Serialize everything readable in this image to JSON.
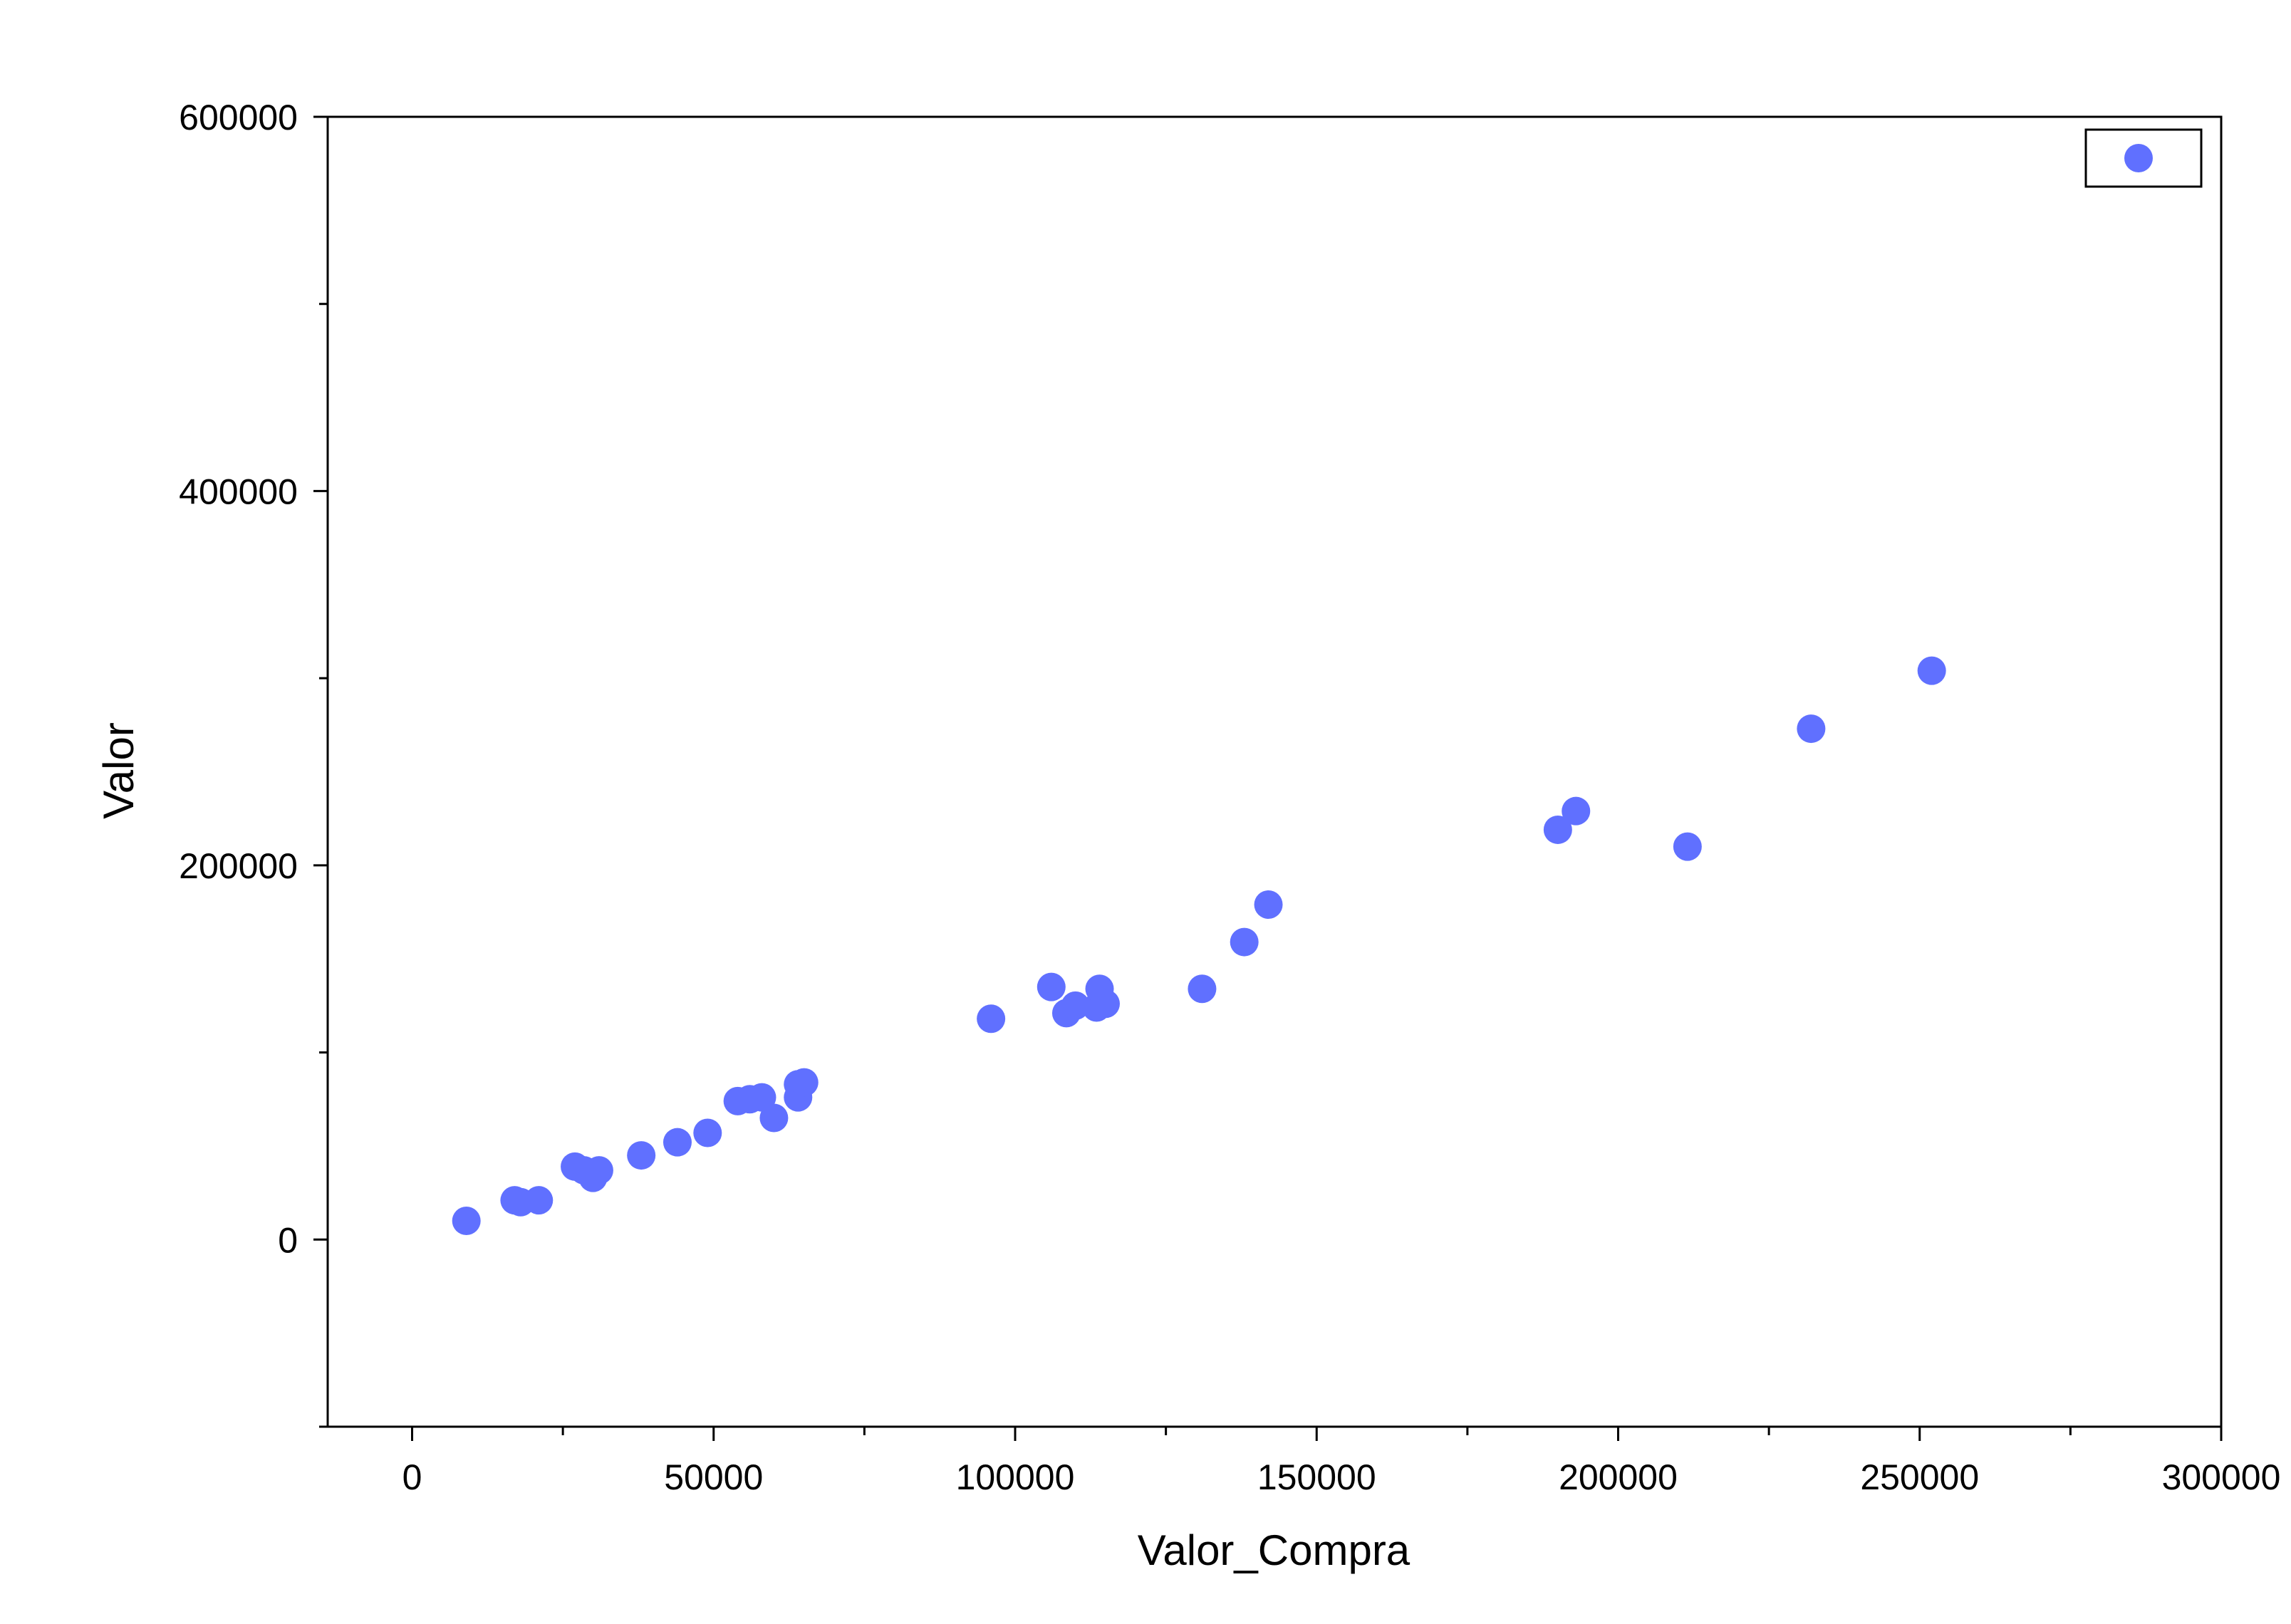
{
  "chart_data": {
    "type": "scatter",
    "title": "",
    "xlabel": "Valor_Compra",
    "ylabel": "Valor",
    "xlim": [
      -14000,
      300000
    ],
    "ylim": [
      -100000,
      600000
    ],
    "x_ticks": [
      0,
      50000,
      100000,
      150000,
      200000,
      250000,
      300000
    ],
    "x_tick_labels": [
      "0",
      "50000",
      "100000",
      "150000",
      "200000",
      "250000",
      "300000"
    ],
    "y_ticks": [
      0,
      200000,
      400000,
      600000
    ],
    "y_tick_labels": [
      "0",
      "200000",
      "400000",
      "600000"
    ],
    "grid": false,
    "legend": {
      "placement": "top-right",
      "entries": [
        ""
      ]
    },
    "series": [
      {
        "color": "#6070FF",
        "marker": "circle",
        "x": [
          9000,
          17000,
          18000,
          21000,
          27000,
          28500,
          30000,
          31000,
          38000,
          44000,
          49000,
          54000,
          56000,
          58000,
          60000,
          64000,
          64000,
          65000,
          96000,
          106000,
          108500,
          110000,
          113500,
          114000,
          115000,
          131000,
          138000,
          142000,
          190000,
          193000,
          211500,
          232000,
          252000
        ],
        "y": [
          10000,
          21000,
          20000,
          21000,
          39000,
          37000,
          33000,
          37000,
          45000,
          52000,
          57000,
          74000,
          75000,
          76000,
          65000,
          76000,
          83000,
          84000,
          118000,
          135000,
          121000,
          125000,
          124000,
          134000,
          126000,
          134000,
          159000,
          179000,
          219000,
          229000,
          210000,
          273000,
          304000
        ]
      }
    ]
  }
}
